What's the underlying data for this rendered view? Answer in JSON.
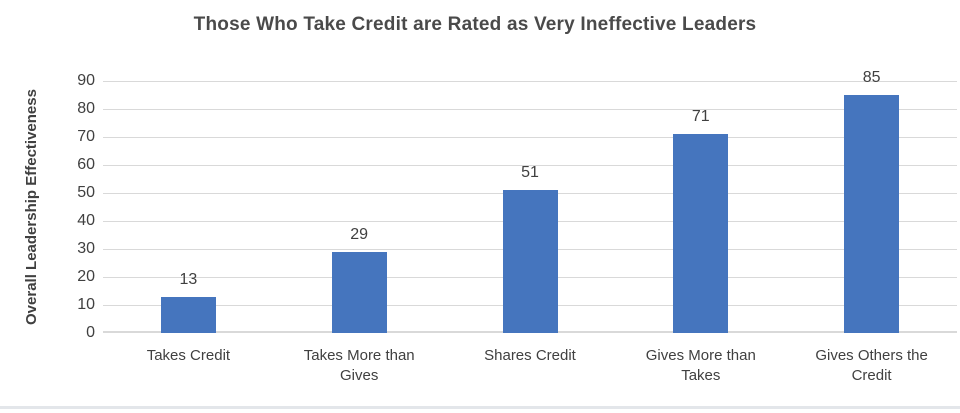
{
  "chart_data": {
    "type": "bar",
    "title": "Those Who Take Credit are Rated as Very Ineffective Leaders",
    "ylabel": "Overall Leadership Effectiveness",
    "xlabel": "",
    "categories": [
      "Takes Credit",
      "Takes More than\nGives",
      "Shares Credit",
      "Gives More than\nTakes",
      "Gives Others the\nCredit"
    ],
    "values": [
      13,
      29,
      51,
      71,
      85
    ],
    "ylim": [
      0,
      90
    ],
    "yticks": [
      0,
      10,
      20,
      30,
      40,
      50,
      60,
      70,
      80,
      90
    ],
    "grid": "horizontal",
    "legend": "none",
    "bar_color": "#4575be",
    "gridline_color": "#d9d9d9",
    "text_color": "#404040",
    "title_color": "#4a4a4a"
  }
}
